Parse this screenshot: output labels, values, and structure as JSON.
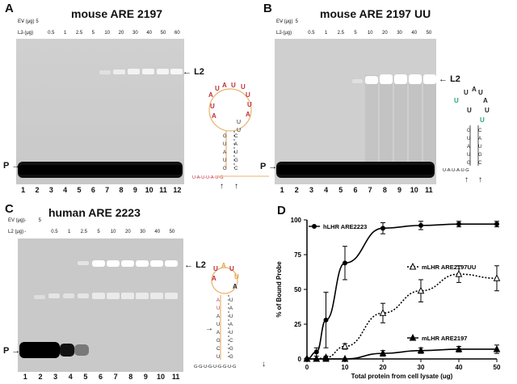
{
  "panels": {
    "A": {
      "letter": "A",
      "title": "mouse ARE 2197",
      "ev_label": "EV (μg)",
      "l2_label": "L2 (μg)",
      "ev_values": [
        "-",
        "5",
        "",
        "",
        "",
        "",
        "",
        "",
        "",
        "",
        "",
        ""
      ],
      "l2_values": [
        "-",
        "",
        "0.5",
        "1",
        "2.5",
        "5",
        "10",
        "20",
        "30",
        "40",
        "50",
        "60"
      ],
      "lanes": [
        "1",
        "2",
        "3",
        "4",
        "5",
        "6",
        "7",
        "8",
        "9",
        "10",
        "11",
        "12"
      ],
      "marker_l2": "L2",
      "marker_p": "P",
      "structure_top": [
        "A",
        "U",
        "A",
        "U",
        "U",
        "U",
        "U",
        "A",
        "U",
        "U",
        "U",
        "U",
        "A"
      ],
      "structure_tail": "U-A-U-U-A-U-G"
    },
    "B": {
      "letter": "B",
      "title": "mouse ARE 2197 UU",
      "ev_label": "EV (μg)",
      "l2_label": "L2 (μg)",
      "ev_values": [
        "-",
        "5",
        "",
        "",
        "",
        "",
        "",
        "",
        "",
        "",
        ""
      ],
      "l2_values": [
        "-",
        "",
        "0.5",
        "1",
        "2.5",
        "5",
        "10",
        "20",
        "30",
        "40",
        "50"
      ],
      "lanes": [
        "1",
        "2",
        "3",
        "4",
        "5",
        "6",
        "7",
        "8",
        "9",
        "10",
        "11"
      ],
      "marker_l2": "L2",
      "marker_p": "P",
      "structure_tail": "U-A-U-A-U-G"
    },
    "C": {
      "letter": "C",
      "title": "human ARE 2223",
      "ev_label": "EV (μg)",
      "l2_label": "L2 (μg)",
      "ev_values": [
        "-",
        "5",
        "",
        "",
        "",
        "",
        "",
        "",
        "",
        "",
        ""
      ],
      "l2_values": [
        "-",
        "",
        "0.5",
        "1",
        "2.5",
        "5",
        "10",
        "20",
        "30",
        "40",
        "50"
      ],
      "lanes": [
        "1",
        "2",
        "3",
        "4",
        "5",
        "6",
        "7",
        "8",
        "9",
        "10",
        "11"
      ],
      "marker_l2": "L2",
      "marker_p": "P",
      "structure_tail": "G-G-U-G-U-G-G-U-G"
    },
    "D": {
      "letter": "D"
    }
  },
  "chart_data": {
    "type": "line",
    "ylabel": "% of Bound Probe",
    "xlabel": "Total protein from cell lysate (ug)",
    "xlim": [
      0,
      50
    ],
    "ylim": [
      0,
      100
    ],
    "xticks": [
      0,
      10,
      20,
      30,
      40,
      50
    ],
    "yticks": [
      0,
      25,
      50,
      75,
      100
    ],
    "series": [
      {
        "name": "hLHR ARE2223",
        "marker": "filled-circle",
        "line": "solid",
        "x": [
          0,
          2.5,
          5,
          10,
          20,
          30,
          40,
          50
        ],
        "y": [
          0,
          5,
          28,
          69,
          94,
          96,
          97,
          97
        ],
        "err": [
          0,
          3,
          20,
          12,
          4,
          3,
          2,
          2
        ]
      },
      {
        "name": "mLHR ARE2197UU",
        "marker": "open-triangle",
        "line": "dotted",
        "x": [
          0,
          2.5,
          5,
          10,
          20,
          30,
          40,
          50
        ],
        "y": [
          0,
          0,
          1,
          9,
          33,
          49,
          61,
          58
        ],
        "err": [
          0,
          0,
          1,
          2,
          7,
          8,
          6,
          9
        ]
      },
      {
        "name": "mLHR ARE2197",
        "marker": "filled-triangle",
        "line": "solid",
        "x": [
          0,
          2.5,
          5,
          10,
          20,
          30,
          40,
          50
        ],
        "y": [
          0,
          0,
          0,
          0,
          4,
          6,
          7,
          7
        ],
        "err": [
          0,
          0,
          0,
          0,
          2,
          2,
          2,
          3
        ]
      }
    ]
  }
}
